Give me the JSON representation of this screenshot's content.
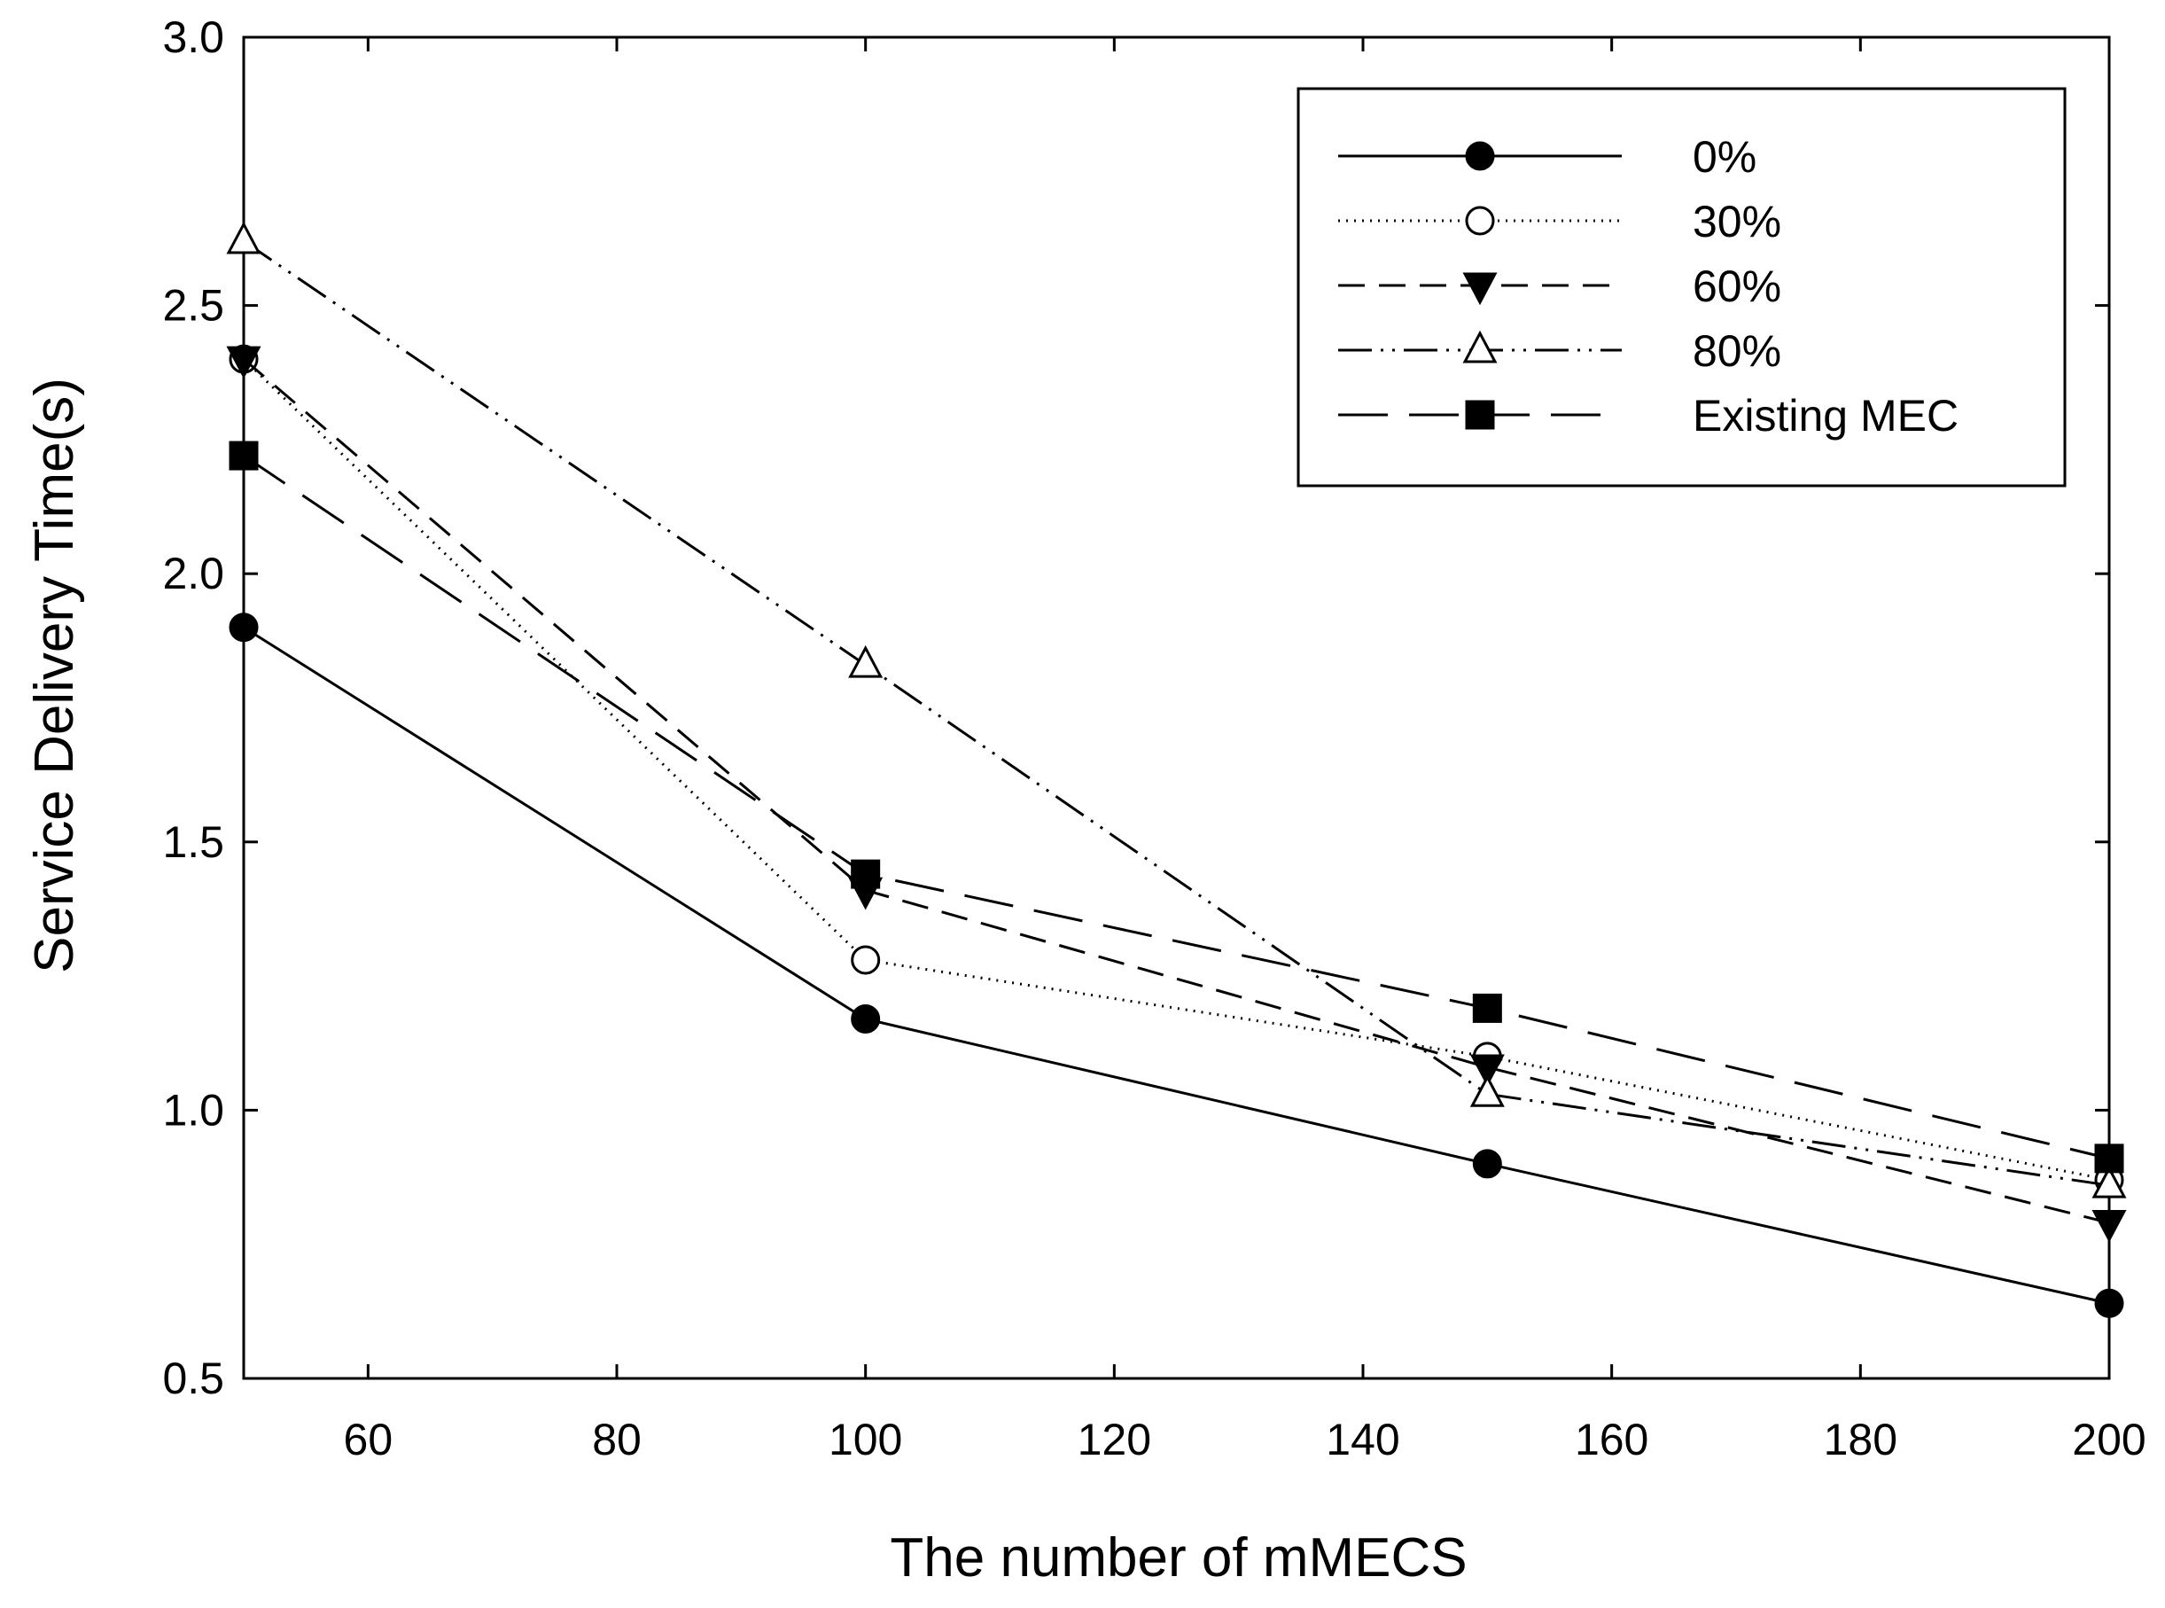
{
  "chart_data": {
    "type": "line",
    "title": "",
    "xlabel": "The number of mMECS",
    "ylabel": "Service Delivery Time(s)",
    "xlim": [
      50,
      200
    ],
    "ylim": [
      0.5,
      3.0
    ],
    "xticks": [
      60,
      80,
      100,
      120,
      140,
      160,
      180,
      200
    ],
    "yticks": [
      0.5,
      1.0,
      1.5,
      2.0,
      2.5,
      3.0
    ],
    "x": [
      50,
      100,
      150,
      200
    ],
    "grid": false,
    "legend_position": "top-right",
    "series": [
      {
        "name": "0%",
        "values": [
          1.9,
          1.17,
          0.9,
          0.64
        ],
        "marker": "filled-circle",
        "line_style": "solid"
      },
      {
        "name": "30%",
        "values": [
          2.4,
          1.28,
          1.1,
          0.87
        ],
        "marker": "open-circle",
        "line_style": "dotted"
      },
      {
        "name": "60%",
        "values": [
          2.4,
          1.41,
          1.08,
          0.79
        ],
        "marker": "filled-triangle-down",
        "line_style": "dashed"
      },
      {
        "name": "80%",
        "values": [
          2.62,
          1.83,
          1.03,
          0.86
        ],
        "marker": "open-triangle-up",
        "line_style": "dash-dot-dot"
      },
      {
        "name": "Existing MEC",
        "values": [
          2.22,
          1.44,
          1.19,
          0.91
        ],
        "marker": "filled-square",
        "line_style": "long-dash"
      }
    ]
  },
  "colors": {
    "line": "#000000",
    "background": "#ffffff"
  }
}
